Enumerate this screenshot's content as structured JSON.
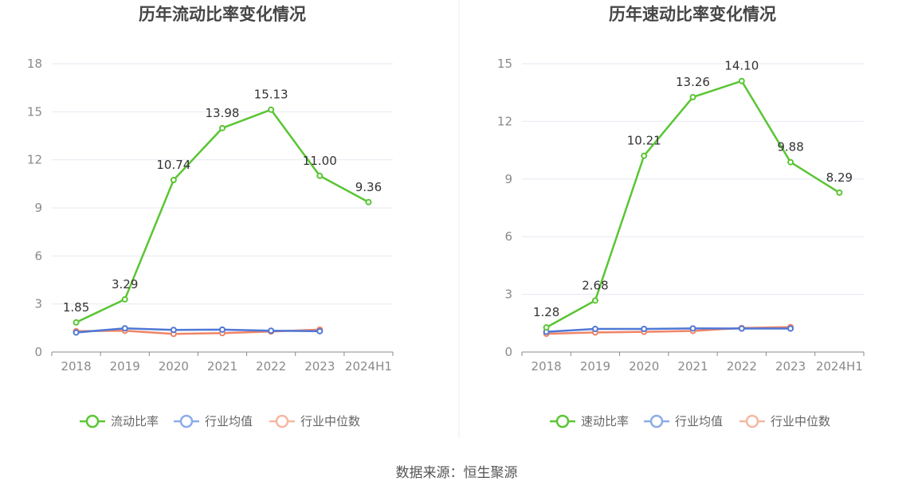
{
  "source": "数据来源：恒生聚源",
  "chart_data": [
    {
      "type": "line",
      "title": "历年流动比率变化情况",
      "categories": [
        "2018",
        "2019",
        "2020",
        "2021",
        "2022",
        "2023",
        "2024H1"
      ],
      "ylim": [
        0,
        18
      ],
      "yticks": [
        0,
        3,
        6,
        9,
        12,
        15,
        18
      ],
      "grid": true,
      "legend_position": "bottom",
      "series": [
        {
          "name": "流动比率",
          "color": "#5ac534",
          "labels": true,
          "values": [
            1.85,
            3.29,
            10.74,
            13.98,
            15.13,
            11.0,
            9.36
          ],
          "value_labels": [
            "1.85",
            "3.29",
            "10.74",
            "13.98",
            "15.13",
            "11.00",
            "9.36"
          ]
        },
        {
          "name": "行业均值",
          "color": "#4f77d6",
          "legend_color": "#8cabe8",
          "labels": false,
          "values": [
            1.22,
            1.48,
            1.38,
            1.4,
            1.33,
            1.3,
            null
          ]
        },
        {
          "name": "行业中位数",
          "color": "#ef8467",
          "legend_color": "#f5b7a3",
          "labels": false,
          "values": [
            1.3,
            1.33,
            1.13,
            1.18,
            1.28,
            1.4,
            null
          ]
        }
      ]
    },
    {
      "type": "line",
      "title": "历年速动比率变化情况",
      "categories": [
        "2018",
        "2019",
        "2020",
        "2021",
        "2022",
        "2023",
        "2024H1"
      ],
      "ylim": [
        0,
        15
      ],
      "yticks": [
        0,
        3,
        6,
        9,
        12,
        15
      ],
      "grid": true,
      "legend_position": "bottom",
      "series": [
        {
          "name": "速动比率",
          "color": "#5ac534",
          "labels": true,
          "values": [
            1.28,
            2.68,
            10.21,
            13.26,
            14.1,
            9.88,
            8.29
          ],
          "value_labels": [
            "1.28",
            "2.68",
            "10.21",
            "13.26",
            "14.10",
            "9.88",
            "8.29"
          ]
        },
        {
          "name": "行业均值",
          "color": "#4f77d6",
          "legend_color": "#8cabe8",
          "labels": false,
          "values": [
            1.05,
            1.2,
            1.2,
            1.23,
            1.22,
            1.22,
            null
          ]
        },
        {
          "name": "行业中位数",
          "color": "#ef8467",
          "legend_color": "#f5b7a3",
          "labels": false,
          "values": [
            0.95,
            1.02,
            1.05,
            1.1,
            1.25,
            1.3,
            null
          ]
        }
      ]
    }
  ]
}
